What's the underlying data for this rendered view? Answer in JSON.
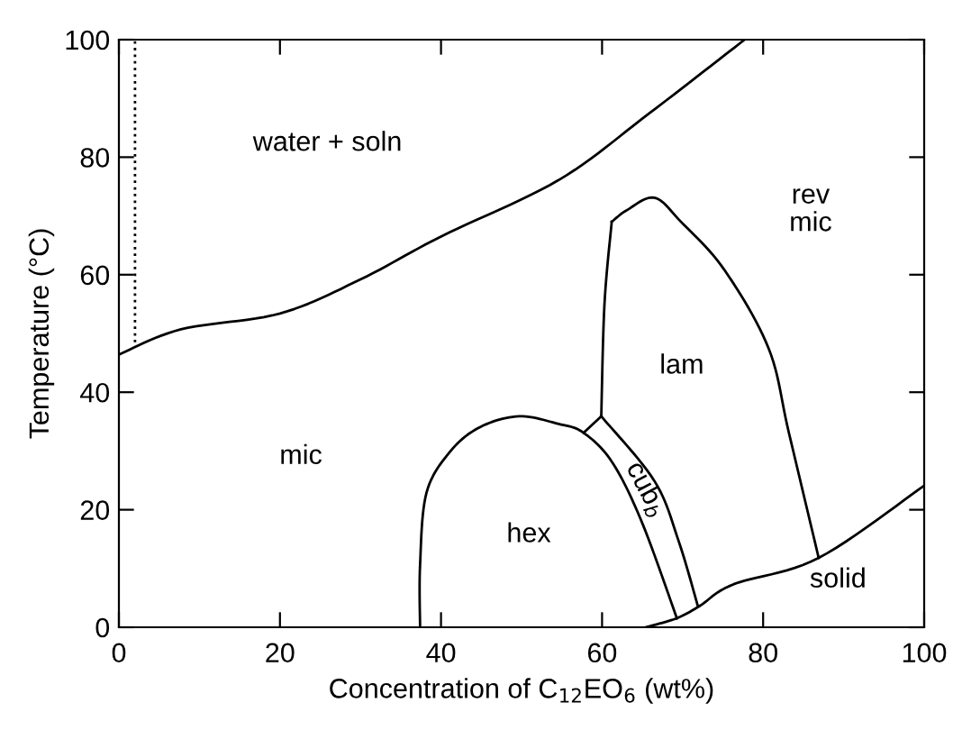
{
  "chart_data": {
    "type": "line",
    "xlabel": "Concentration of C$_{12}$EO$_{6}$ (wt%)",
    "ylabel": "Temperature (°C)",
    "xlim": [
      0,
      100
    ],
    "ylim": [
      0,
      100
    ],
    "xticks": [
      0,
      20,
      40,
      60,
      80,
      100
    ],
    "yticks": [
      0,
      20,
      40,
      60,
      80,
      100
    ],
    "grid": false,
    "legend": false,
    "marker": "none",
    "series": [
      {
        "color": "#000000",
        "line_style": "solid",
        "x": [
          0,
          7.7,
          20,
          30,
          40,
          54.6,
          65.8,
          77.7
        ],
        "values": [
          46.4,
          50.7,
          53.4,
          59.2,
          66.5,
          76.1,
          87.4,
          100
        ]
      },
      {
        "color": "#000000",
        "line_style": "dotted",
        "x": [
          2,
          2
        ],
        "values": [
          48.5,
          100
        ]
      },
      {
        "color": "#000000",
        "line_style": "solid",
        "x": [
          37.4,
          37.4,
          38.2,
          41.2,
          44.9,
          49.7,
          54.6,
          57.7,
          61.3,
          65.0,
          69.3
        ],
        "values": [
          0,
          10.6,
          22.9,
          30.0,
          34.1,
          35.9,
          34.6,
          33.1,
          28.0,
          17.7,
          1.5
        ]
      },
      {
        "color": "#000000",
        "line_style": "solid",
        "x": [
          57.7,
          59.9
        ],
        "values": [
          33.1,
          35.9
        ]
      },
      {
        "color": "#000000",
        "line_style": "solid",
        "x": [
          59.9,
          66.5,
          69.5,
          71.9
        ],
        "values": [
          35.9,
          24.9,
          14.7,
          3.6
        ]
      },
      {
        "color": "#000000",
        "line_style": "solid",
        "x": [
          59.9,
          60.3,
          61.2
        ],
        "values": [
          35.9,
          55,
          69.0
        ]
      },
      {
        "color": "#000000",
        "line_style": "solid",
        "x": [
          61.2,
          63.1,
          66.5,
          69.8,
          75.2,
          80.7,
          83.2,
          86.9
        ],
        "values": [
          69.0,
          71.0,
          73.1,
          69.0,
          60.8,
          47.4,
          33.1,
          11.8
        ]
      },
      {
        "color": "#000000",
        "line_style": "solid",
        "x": [
          65.4,
          69.2,
          72.1,
          76.3,
          86.9,
          100
        ],
        "values": [
          0,
          1.5,
          3.6,
          7.3,
          11.8,
          24.1
        ]
      }
    ],
    "annotations": [
      "water + soln",
      "mic",
      "hex",
      "lam",
      "rev\nmic",
      "solid",
      "cub$_{b}$"
    ]
  }
}
